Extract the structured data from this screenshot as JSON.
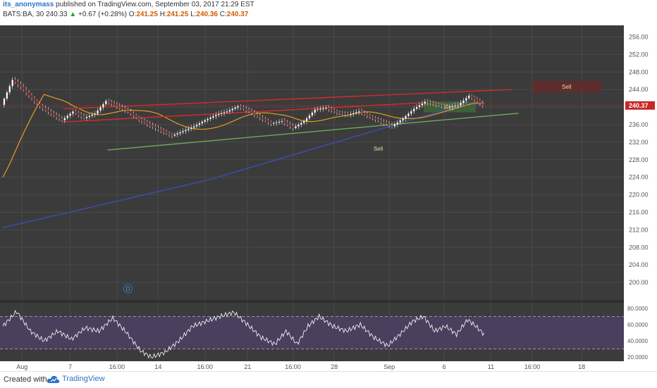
{
  "header": {
    "user": "its_anonymass",
    "published": " published on TradingView.com, September 03, 2017 21:29 EST",
    "symbol": "BATS:BA, 30",
    "price": "240.33",
    "change_arrow": "▲",
    "change": "+0.67 (+0.28%)",
    "o_label": "O:",
    "o": "241.25",
    "h_label": "H:",
    "h": "241.25",
    "l_label": "L:",
    "l": "240.36",
    "c_label": "C:",
    "c": "240.37"
  },
  "footer": {
    "created_with": "Created with",
    "brand": "TradingView"
  },
  "colors": {
    "background": "#3b3b3b",
    "grid": "#4a4a4a",
    "candle_up": "#ffffff",
    "candle_down": "#a12b2b",
    "ma_fast": "#e69b1a",
    "ma_slow": "#3d4baa",
    "channel": "#d42b2b",
    "support": "#6cab5a",
    "rsi_fill": "#4b3f5e",
    "rsi_line": "#ffffff",
    "price_badge": "#c62828"
  },
  "chart_data": {
    "type": "candlestick",
    "symbol": "BATS:BA",
    "interval": "30",
    "y_range": [
      196,
      258
    ],
    "y_ticks": [
      "256.00",
      "252.00",
      "248.00",
      "244.00",
      "240.00",
      "236.00",
      "232.00",
      "228.00",
      "224.00",
      "220.00",
      "216.00",
      "212.00",
      "208.00",
      "204.00",
      "200.00"
    ],
    "last_price": "240.37",
    "x_ticks": [
      "Aug",
      "7",
      "16:00",
      "14",
      "16:00",
      "21",
      "16:00",
      "28",
      "Sep",
      "6",
      "11",
      "16:00",
      "18"
    ],
    "price_anchors": [
      {
        "t": 0,
        "v": 240.5
      },
      {
        "t": 8,
        "v": 246.2
      },
      {
        "t": 14,
        "v": 244.6
      },
      {
        "t": 22,
        "v": 242.0
      },
      {
        "t": 28,
        "v": 240.2
      },
      {
        "t": 36,
        "v": 238.5
      },
      {
        "t": 44,
        "v": 237.0
      },
      {
        "t": 52,
        "v": 239.0
      },
      {
        "t": 60,
        "v": 237.5
      },
      {
        "t": 68,
        "v": 238.5
      },
      {
        "t": 76,
        "v": 241.4
      },
      {
        "t": 84,
        "v": 240.2
      },
      {
        "t": 92,
        "v": 239.0
      },
      {
        "t": 100,
        "v": 237.2
      },
      {
        "t": 108,
        "v": 235.8
      },
      {
        "t": 116,
        "v": 234.6
      },
      {
        "t": 124,
        "v": 233.5
      },
      {
        "t": 132,
        "v": 234.5
      },
      {
        "t": 140,
        "v": 235.6
      },
      {
        "t": 148,
        "v": 237.0
      },
      {
        "t": 156,
        "v": 238.2
      },
      {
        "t": 164,
        "v": 239.0
      },
      {
        "t": 172,
        "v": 240.2
      },
      {
        "t": 180,
        "v": 239.0
      },
      {
        "t": 188,
        "v": 237.6
      },
      {
        "t": 196,
        "v": 236.2
      },
      {
        "t": 204,
        "v": 236.8
      },
      {
        "t": 212,
        "v": 235.2
      },
      {
        "t": 220,
        "v": 236.8
      },
      {
        "t": 228,
        "v": 239.4
      },
      {
        "t": 236,
        "v": 239.8
      },
      {
        "t": 244,
        "v": 238.8
      },
      {
        "t": 252,
        "v": 238.2
      },
      {
        "t": 260,
        "v": 239.0
      },
      {
        "t": 268,
        "v": 237.8
      },
      {
        "t": 276,
        "v": 236.6
      },
      {
        "t": 284,
        "v": 235.6
      },
      {
        "t": 292,
        "v": 237.4
      },
      {
        "t": 300,
        "v": 239.6
      },
      {
        "t": 308,
        "v": 241.2
      },
      {
        "t": 316,
        "v": 240.6
      },
      {
        "t": 324,
        "v": 240.0
      },
      {
        "t": 332,
        "v": 240.4
      },
      {
        "t": 340,
        "v": 242.6
      },
      {
        "t": 346,
        "v": 241.4
      },
      {
        "t": 350,
        "v": 240.37
      }
    ],
    "rsi": {
      "range": [
        15,
        85
      ],
      "upper": 70,
      "lower": 30,
      "ticks": [
        "80.0000",
        "60.0000",
        "40.0000",
        "20.0000"
      ],
      "anchors": [
        {
          "t": 0,
          "v": 58
        },
        {
          "t": 10,
          "v": 76
        },
        {
          "t": 20,
          "v": 52
        },
        {
          "t": 30,
          "v": 40
        },
        {
          "t": 40,
          "v": 52
        },
        {
          "t": 50,
          "v": 42
        },
        {
          "t": 60,
          "v": 56
        },
        {
          "t": 70,
          "v": 52
        },
        {
          "t": 80,
          "v": 68
        },
        {
          "t": 90,
          "v": 50
        },
        {
          "t": 100,
          "v": 28
        },
        {
          "t": 108,
          "v": 20
        },
        {
          "t": 118,
          "v": 26
        },
        {
          "t": 128,
          "v": 40
        },
        {
          "t": 138,
          "v": 58
        },
        {
          "t": 148,
          "v": 64
        },
        {
          "t": 158,
          "v": 70
        },
        {
          "t": 168,
          "v": 75
        },
        {
          "t": 178,
          "v": 60
        },
        {
          "t": 188,
          "v": 44
        },
        {
          "t": 198,
          "v": 36
        },
        {
          "t": 206,
          "v": 52
        },
        {
          "t": 214,
          "v": 36
        },
        {
          "t": 222,
          "v": 58
        },
        {
          "t": 230,
          "v": 70
        },
        {
          "t": 240,
          "v": 58
        },
        {
          "t": 250,
          "v": 52
        },
        {
          "t": 260,
          "v": 60
        },
        {
          "t": 270,
          "v": 44
        },
        {
          "t": 280,
          "v": 34
        },
        {
          "t": 290,
          "v": 50
        },
        {
          "t": 298,
          "v": 64
        },
        {
          "t": 306,
          "v": 70
        },
        {
          "t": 314,
          "v": 52
        },
        {
          "t": 322,
          "v": 58
        },
        {
          "t": 330,
          "v": 48
        },
        {
          "t": 338,
          "v": 66
        },
        {
          "t": 344,
          "v": 58
        },
        {
          "t": 350,
          "v": 48
        }
      ]
    },
    "annotations": [
      {
        "label": "Sell",
        "t1": 385,
        "t2": 435,
        "p1": 246.0,
        "p2": 243.3,
        "color": "#6a2a2a"
      },
      {
        "label": "Buy",
        "t1": 306,
        "t2": 344,
        "p1": 241.3,
        "p2": 238.8,
        "color": "#3f6e3a"
      },
      {
        "label": "Sell",
        "t1": 260,
        "t2": 286,
        "p1": 231.0,
        "p2": 230.0,
        "color": "transparent"
      }
    ],
    "trendlines": [
      {
        "name": "channel_top",
        "t1": 44,
        "p1": 239.6,
        "t2": 370,
        "p2": 244.0
      },
      {
        "name": "channel_bottom",
        "t1": 44,
        "p1": 236.6,
        "t2": 306,
        "p2": 241.0
      },
      {
        "name": "support",
        "t1": 76,
        "p1": 230.2,
        "t2": 375,
        "p2": 238.6
      }
    ],
    "event_marker": "D"
  }
}
